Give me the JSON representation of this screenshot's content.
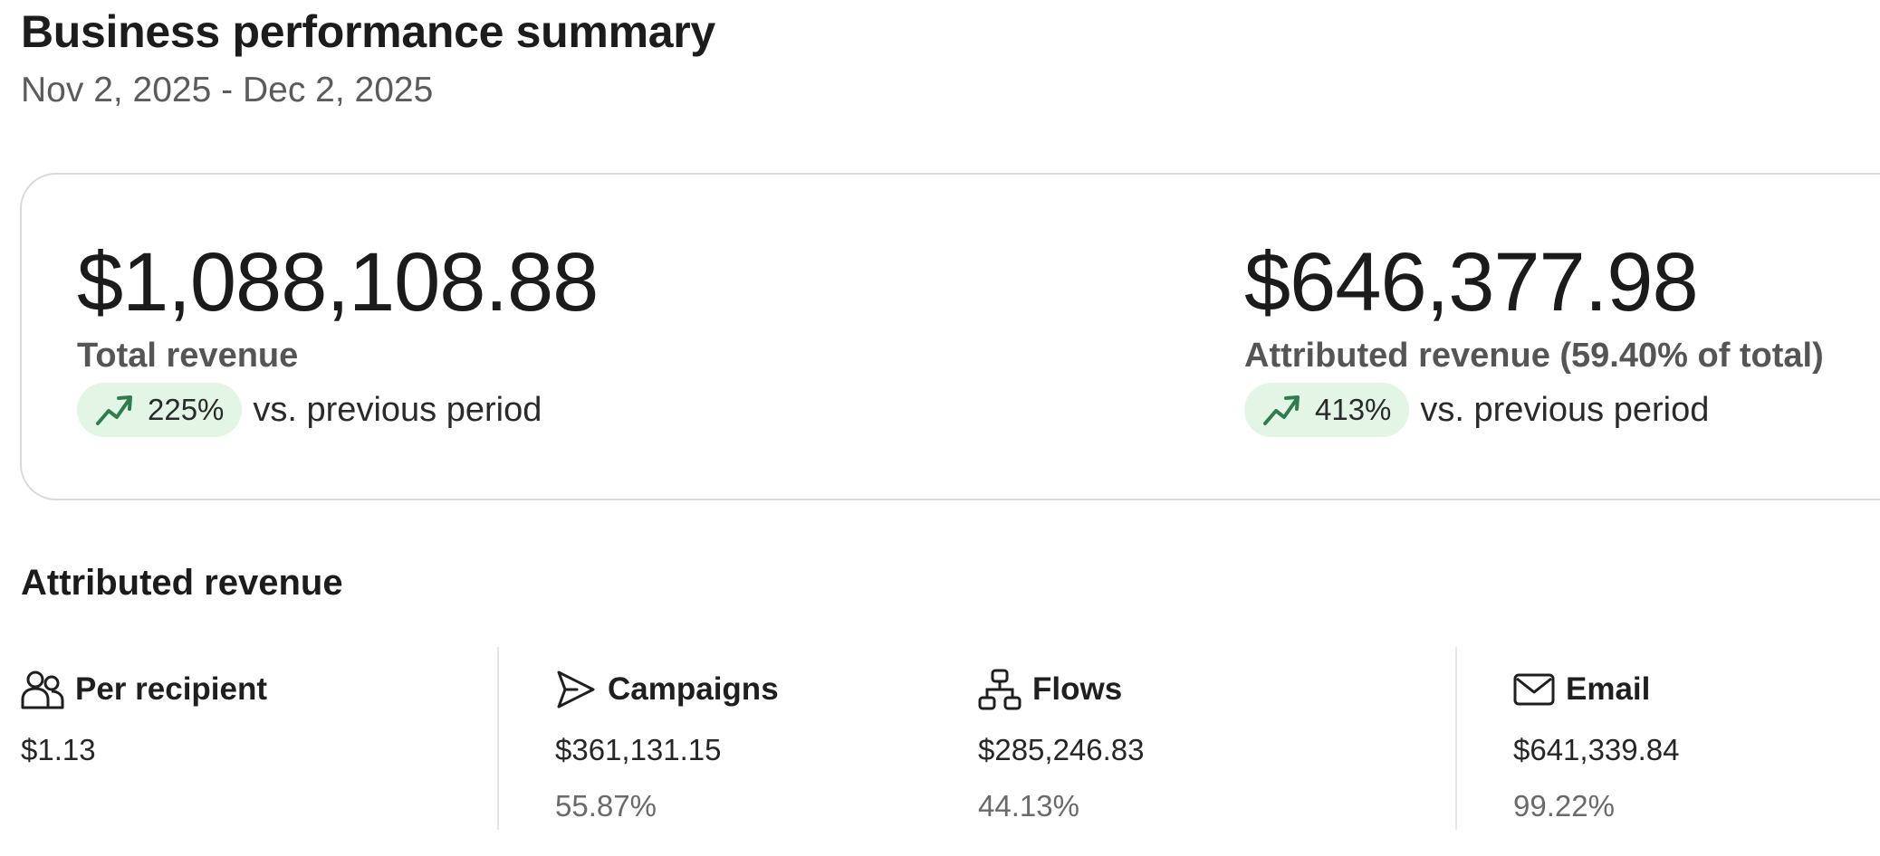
{
  "header": {
    "title": "Business performance summary",
    "date_range": "Nov 2, 2025 - Dec 2, 2025"
  },
  "summary": {
    "total": {
      "value": "$1,088,108.88",
      "label": "Total revenue",
      "change": "225%",
      "change_suffix": "vs. previous period",
      "trend": "up"
    },
    "attributed": {
      "value": "$646,377.98",
      "label": "Attributed revenue (59.40% of total)",
      "change": "413%",
      "change_suffix": "vs. previous period",
      "trend": "up"
    }
  },
  "attributed_section": {
    "title": "Attributed revenue",
    "metrics": [
      {
        "name": "Per recipient",
        "icon": "people-icon",
        "value": "$1.13",
        "percent": ""
      },
      {
        "name": "Campaigns",
        "icon": "send-icon",
        "value": "$361,131.15",
        "percent": "55.87%"
      },
      {
        "name": "Flows",
        "icon": "flow-icon",
        "value": "$285,246.83",
        "percent": "44.13%"
      },
      {
        "name": "Email",
        "icon": "mail-icon",
        "value": "$641,339.84",
        "percent": "99.22%"
      }
    ]
  },
  "colors": {
    "badge_bg": "#e3f6e5",
    "trend_icon": "#2f7d4f",
    "card_border": "#d9d9d9",
    "divider": "#e6e6e6"
  }
}
